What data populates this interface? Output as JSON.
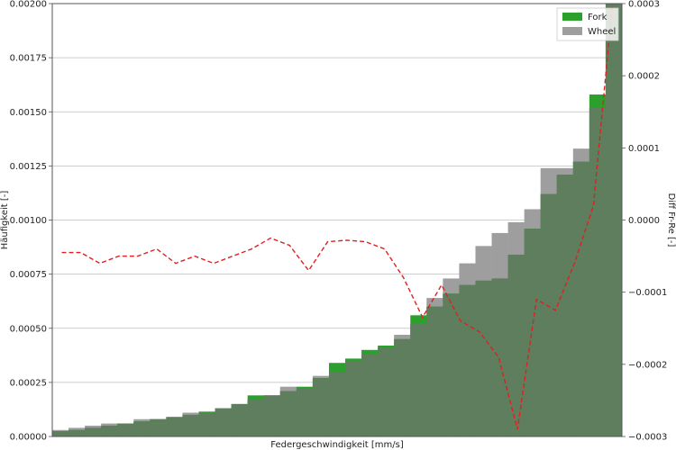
{
  "chart_data": {
    "type": "bar",
    "xlabel": "Federgeschwindigkeit [mm/s]",
    "ylabel": "Häufigkeit [-]",
    "y2label": "Diff Fr-Re [-]",
    "ylim": [
      0,
      0.002
    ],
    "y2lim": [
      -0.0003,
      0.0003
    ],
    "yticks": [
      "0.00000",
      "0.00025",
      "0.00050",
      "0.00075",
      "0.00100",
      "0.00125",
      "0.00150",
      "0.00175",
      "0.00200"
    ],
    "y2ticks": [
      "−0.0003",
      "−0.0002",
      "−0.0001",
      "0.0000",
      "0.0001",
      "0.0002",
      "0.0003"
    ],
    "grid": true,
    "legend_position": "top-right",
    "colors": {
      "fork": "#2ca02c",
      "wheel": "#9e9e9e",
      "overlap": "#5e7e5e",
      "diff": "#e02020"
    },
    "series": [
      {
        "name": "Fork",
        "values": [
          2.5e-05,
          3e-05,
          4e-05,
          5e-05,
          6e-05,
          7e-05,
          8e-05,
          9e-05,
          0.0001,
          0.000115,
          0.00013,
          0.00015,
          0.00019,
          0.00019,
          0.00021,
          0.00023,
          0.00027,
          0.00034,
          0.00036,
          0.0004,
          0.00042,
          0.00045,
          0.00056,
          0.0006,
          0.00066,
          0.0007,
          0.00072,
          0.00073,
          0.00084,
          0.00096,
          0.00112,
          0.00121,
          0.00127,
          0.00158,
          0.002
        ]
      },
      {
        "name": "Wheel",
        "values": [
          3e-05,
          4e-05,
          5e-05,
          6e-05,
          6e-05,
          8e-05,
          8e-05,
          9e-05,
          0.00011,
          0.00011,
          0.00013,
          0.00015,
          0.00017,
          0.00019,
          0.00023,
          0.00022,
          0.00028,
          0.0003,
          0.00035,
          0.00038,
          0.00041,
          0.00047,
          0.00052,
          0.00064,
          0.00073,
          0.0008,
          0.00088,
          0.00094,
          0.00099,
          0.00105,
          0.00124,
          0.00124,
          0.00133,
          0.00152,
          0.002
        ]
      }
    ],
    "diff_line": {
      "name": "Diff Fr-Re",
      "values": [
        -4.5e-05,
        -4.5e-05,
        -6e-05,
        -5e-05,
        -5e-05,
        -4e-05,
        -6e-05,
        -5e-05,
        -6e-05,
        -5e-05,
        -4e-05,
        -2.5e-05,
        -3.5e-05,
        -7e-05,
        -3e-05,
        -2.8e-05,
        -3e-05,
        -4e-05,
        -8e-05,
        -0.000135,
        -9e-05,
        -0.00014,
        -0.000155,
        -0.00019,
        -0.00029,
        -0.00011,
        -0.000125,
        -6e-05,
        2e-05,
        0.0003
      ]
    }
  }
}
